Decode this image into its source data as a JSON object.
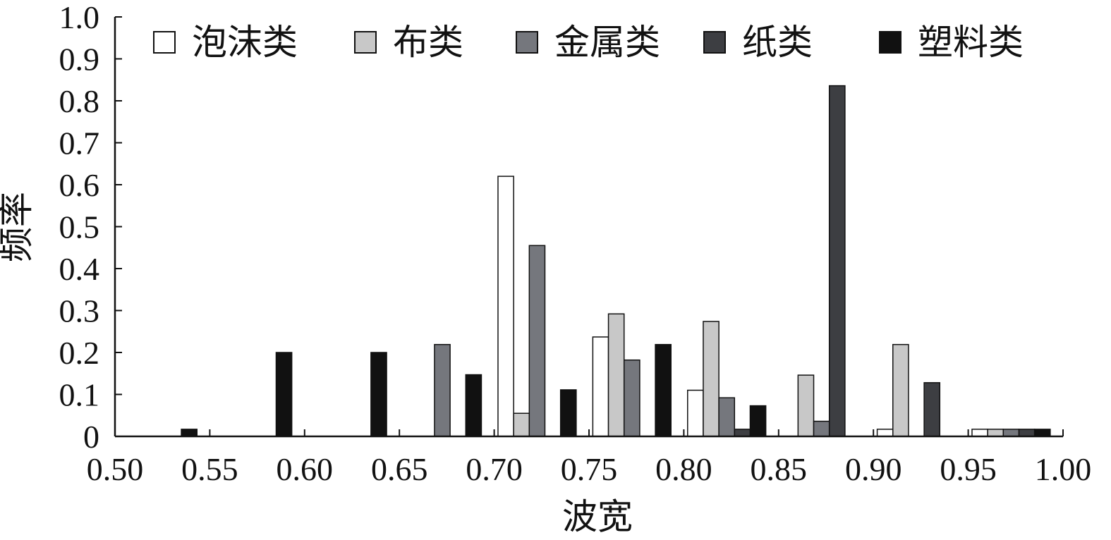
{
  "chart_data": {
    "type": "bar",
    "xlabel": "波宽",
    "ylabel": "频率",
    "xlim": [
      0.5,
      1.0
    ],
    "ylim": [
      0,
      1.0
    ],
    "bin_width": 0.05,
    "bin_starts": [
      0.5,
      0.55,
      0.6,
      0.65,
      0.7,
      0.75,
      0.8,
      0.85,
      0.9,
      0.95
    ],
    "x_ticks": [
      "0.50",
      "0.55",
      "0.60",
      "0.65",
      "0.70",
      "0.75",
      "0.80",
      "0.85",
      "0.90",
      "0.95",
      "1.00"
    ],
    "y_ticks": [
      "0",
      "0.1",
      "0.2",
      "0.3",
      "0.4",
      "0.5",
      "0.6",
      "0.7",
      "0.8",
      "0.9",
      "1.0"
    ],
    "legend_position": "top",
    "grid": false,
    "series": [
      {
        "name": "泡沫类",
        "color": "#ffffff",
        "values": [
          0,
          0,
          0,
          0,
          0.62,
          0.237,
          0.11,
          0,
          0.017,
          0.017
        ]
      },
      {
        "name": "布类",
        "color": "#c8c8c8",
        "values": [
          0,
          0,
          0,
          0,
          0.055,
          0.292,
          0.274,
          0.146,
          0.219,
          0.017
        ]
      },
      {
        "name": "金属类",
        "color": "#75777d",
        "values": [
          0,
          0,
          0,
          0.219,
          0.455,
          0.182,
          0.092,
          0.036,
          0,
          0.017
        ]
      },
      {
        "name": "纸类",
        "color": "#3d3e42",
        "values": [
          0,
          0,
          0,
          0,
          0,
          0,
          0.017,
          0.836,
          0.128,
          0.017
        ]
      },
      {
        "name": "塑料类",
        "color": "#111111",
        "values": [
          0.017,
          0.2,
          0.2,
          0.147,
          0.111,
          0.219,
          0.073,
          0,
          0,
          0.017
        ]
      }
    ]
  }
}
